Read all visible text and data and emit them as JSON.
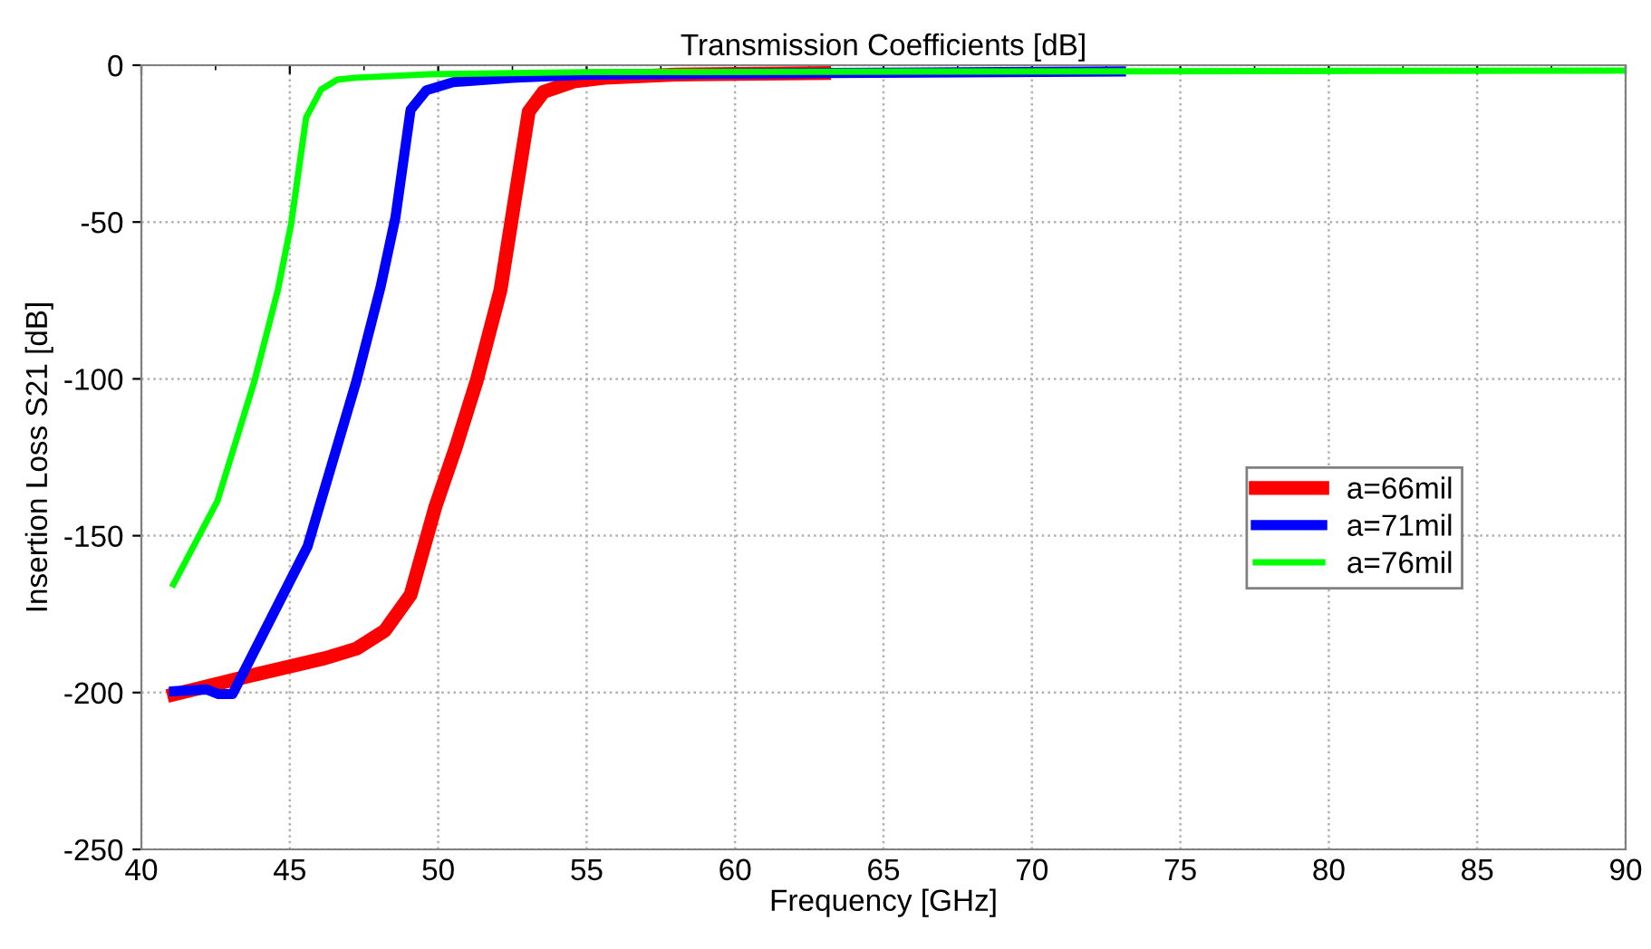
{
  "chart_data": {
    "type": "line",
    "title": "Transmission Coefficients [dB]",
    "xlabel": "Frequency [GHz]",
    "ylabel": "Insertion Loss S21 [dB]",
    "xlim": [
      40,
      90
    ],
    "xticks": [
      40,
      45,
      50,
      55,
      60,
      65,
      70,
      75,
      80,
      85,
      90
    ],
    "ylim": [
      -250,
      0
    ],
    "yticks": [
      -250,
      -200,
      -150,
      -100,
      -50,
      0
    ],
    "grid": true,
    "legend": "right",
    "line_style": "solid",
    "marker": "none",
    "series": [
      {
        "name": "a=66mil",
        "color": "#ff0000",
        "x": [
          41.1,
          43.6,
          46.2,
          47.25,
          48.2,
          49.07,
          49.9,
          50.6,
          51.3,
          52.1,
          53.05,
          53.55,
          54.57,
          55.6,
          58,
          63
        ],
        "values": [
          -200.6,
          -194.8,
          -189,
          -186,
          -180.3,
          -168.8,
          -140.9,
          -121.6,
          -100.5,
          -71.6,
          -14.8,
          -8.5,
          -5.2,
          -4,
          -3,
          -2.5
        ]
      },
      {
        "name": "a=71mil",
        "color": "#0000ff",
        "x": [
          41.1,
          42.2,
          42.6,
          43.07,
          45.6,
          47.25,
          48.06,
          48.56,
          49.07,
          49.6,
          50.5,
          52.5,
          55,
          63,
          73
        ],
        "values": [
          -199.6,
          -199,
          -200.5,
          -200.5,
          -153.4,
          -100.5,
          -70.6,
          -48.5,
          -14.2,
          -8,
          -5.4,
          -4,
          -3,
          -2.5,
          -2
        ]
      },
      {
        "name": "a=76mil",
        "color": "#00ff00",
        "x": [
          41.08,
          42.56,
          43.8,
          44.6,
          45.05,
          45.55,
          46.06,
          46.6,
          47.2,
          49.7,
          55,
          90
        ],
        "values": [
          -165.5,
          -139,
          -101,
          -71.6,
          -50.4,
          -16.7,
          -7.7,
          -4.6,
          -4,
          -2.9,
          -2.2,
          -1.7
        ]
      }
    ]
  }
}
